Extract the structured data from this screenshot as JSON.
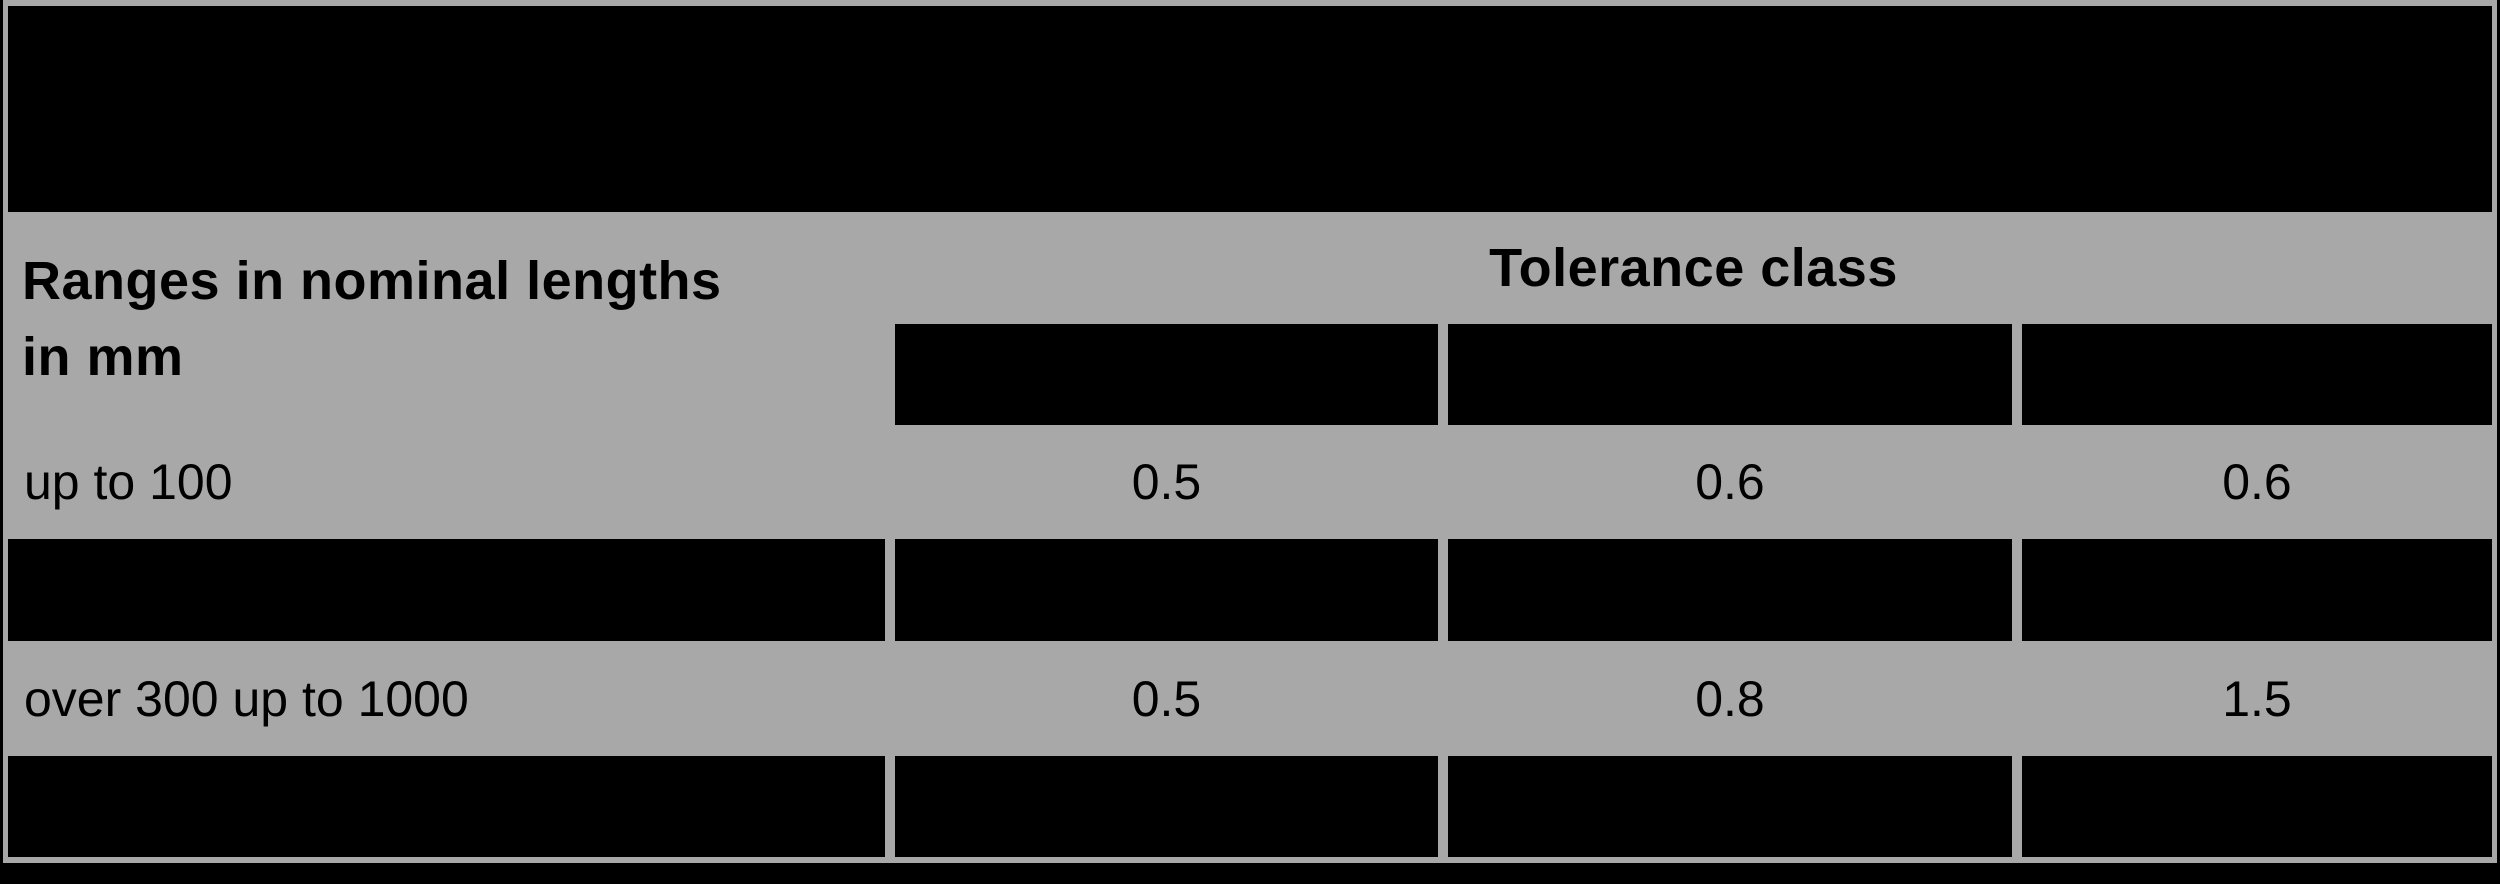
{
  "colors": {
    "background_gray": "#a8a8a8",
    "redaction_black": "#000000"
  },
  "table": {
    "row_header_title": {
      "line1": "Ranges in nominal lengths",
      "line2": "in mm"
    },
    "column_group_header": "Tolerance class",
    "data_rows": [
      {
        "range_label": "up to 100",
        "values": [
          "0.5",
          "0.6",
          "0.6"
        ]
      },
      {
        "range_label": "over 300 up to 1000",
        "values": [
          "0.5",
          "0.8",
          "1.5"
        ]
      }
    ]
  }
}
